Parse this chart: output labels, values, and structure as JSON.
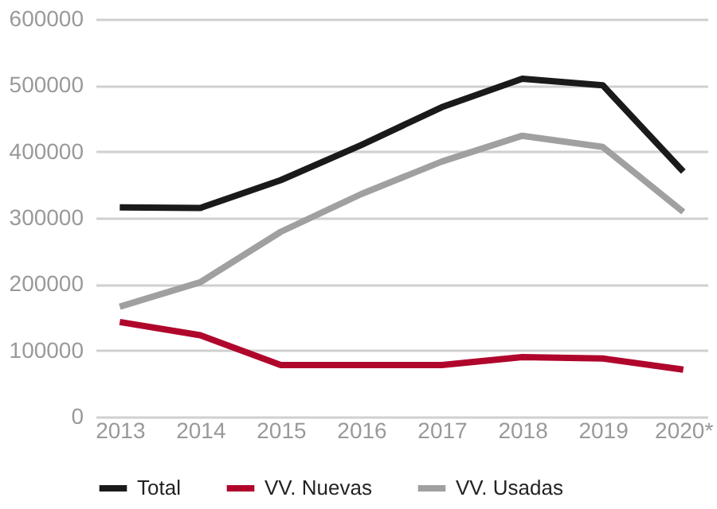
{
  "chart_data": {
    "type": "line",
    "categories": [
      "2013",
      "2014",
      "2015",
      "2016",
      "2017",
      "2018",
      "2019",
      "2020*"
    ],
    "series": [
      {
        "name": "Total",
        "color": "#1a1a1a",
        "values": [
          316000,
          315000,
          357000,
          410000,
          467000,
          510000,
          500000,
          370000
        ]
      },
      {
        "name": "VV. Nuevas",
        "color": "#b0062c",
        "values": [
          143000,
          123000,
          78000,
          78000,
          78000,
          90000,
          88000,
          71000
        ]
      },
      {
        "name": "VV. Usadas",
        "color": "#a0a0a0",
        "values": [
          166000,
          203000,
          279000,
          336000,
          385000,
          424000,
          407000,
          309000
        ]
      }
    ],
    "ylim": [
      0,
      600000
    ],
    "yticks": [
      0,
      100000,
      200000,
      300000,
      400000,
      500000,
      600000
    ],
    "grid": "y",
    "legend": "bottom",
    "marker": "none",
    "line_style": "solid"
  }
}
